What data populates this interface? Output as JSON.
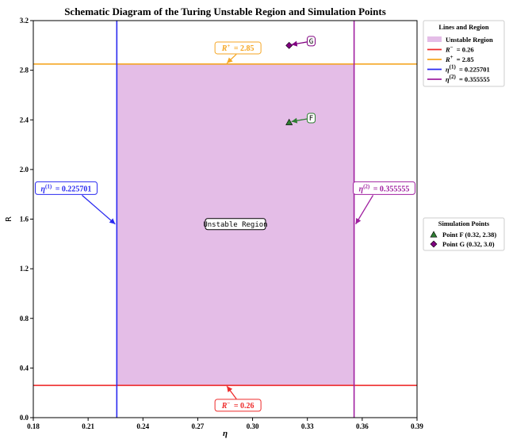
{
  "chart_data": {
    "type": "line",
    "title": "Schematic Diagram of the Turing Unstable Region and Simulation Points",
    "xlabel": "η",
    "ylabel": "R",
    "xlim": [
      0.18,
      0.39
    ],
    "ylim": [
      0.0,
      3.2
    ],
    "xticks": [
      0.18,
      0.21,
      0.24,
      0.27,
      0.3,
      0.33,
      0.36,
      0.39
    ],
    "xtick_labels": [
      "0.18",
      "0.21",
      "0.24",
      "0.27",
      "0.30",
      "0.33",
      "0.36",
      "0.39"
    ],
    "yticks": [
      0.0,
      0.4,
      0.8,
      1.2,
      1.6,
      2.0,
      2.4,
      2.8,
      3.2
    ],
    "ytick_labels": [
      "0.0",
      "0.4",
      "0.8",
      "1.2",
      "1.6",
      "2.0",
      "2.4",
      "2.8",
      "3.2"
    ],
    "region": {
      "name": "Unstable Region",
      "x": [
        0.225701,
        0.355555
      ],
      "y": [
        0.26,
        2.85
      ],
      "color": "#e4bde7",
      "label": "Unstable Region"
    },
    "hlines": [
      {
        "name": "R- = 0.26",
        "y": 0.26,
        "color": "#ee2b2b",
        "label_main": "R",
        "label_sup": "−",
        "label_val": "= 0.26",
        "label_at": [
          0.292,
          0.1
        ]
      },
      {
        "name": "R+ = 2.85",
        "y": 2.85,
        "color": "#f5a623",
        "label_main": "R",
        "label_sup": "+",
        "label_val": "= 2.85",
        "label_at": [
          0.292,
          2.98
        ]
      }
    ],
    "vlines": [
      {
        "name": "η(1) = 0.225701",
        "x": 0.225701,
        "color": "#2a2af0",
        "label_main": "η",
        "label_sup": "(1)",
        "label_val": "= 0.225701",
        "label_at": [
          0.198,
          1.85
        ]
      },
      {
        "name": "η(2) = 0.355555",
        "x": 0.355555,
        "color": "#a020a0",
        "label_main": "η",
        "label_sup": "(2)",
        "label_val": "= 0.355555",
        "label_at": [
          0.372,
          1.85
        ]
      }
    ],
    "points": [
      {
        "name": "Point F (0.32, 2.38)",
        "x": 0.32,
        "y": 2.38,
        "marker": "triangle",
        "color": "#2e7d32",
        "label": "F",
        "label_at": [
          0.326,
          2.44
        ]
      },
      {
        "name": "Point G (0.32, 3.0)",
        "x": 0.32,
        "y": 3.0,
        "marker": "diamond",
        "color": "#800080",
        "label": "G",
        "label_at": [
          0.326,
          3.06
        ]
      }
    ],
    "legend_lines": {
      "title": "Lines and Region",
      "placement": "outside-right-top",
      "entries": [
        {
          "kind": "patch",
          "color": "#e4bde7",
          "label": "Unstable Region"
        },
        {
          "kind": "line",
          "color": "#ee2b2b",
          "label_main": "R",
          "label_sup": "−",
          "label_val": "= 0.26"
        },
        {
          "kind": "line",
          "color": "#f5a623",
          "label_main": "R",
          "label_sup": "+",
          "label_val": "= 2.85"
        },
        {
          "kind": "line",
          "color": "#2a2af0",
          "label_main": "η",
          "label_sup": "(1)",
          "label_val": "= 0.225701"
        },
        {
          "kind": "line",
          "color": "#a020a0",
          "label_main": "η",
          "label_sup": "(2)",
          "label_val": "= 0.355555"
        }
      ]
    },
    "legend_points": {
      "title": "Simulation Points",
      "placement": "outside-right-middle",
      "entries": [
        {
          "marker": "triangle",
          "color": "#2e7d32",
          "label": "Point F (0.32, 2.38)"
        },
        {
          "marker": "diamond",
          "color": "#800080",
          "label": "Point G (0.32, 3.0)"
        }
      ]
    }
  }
}
